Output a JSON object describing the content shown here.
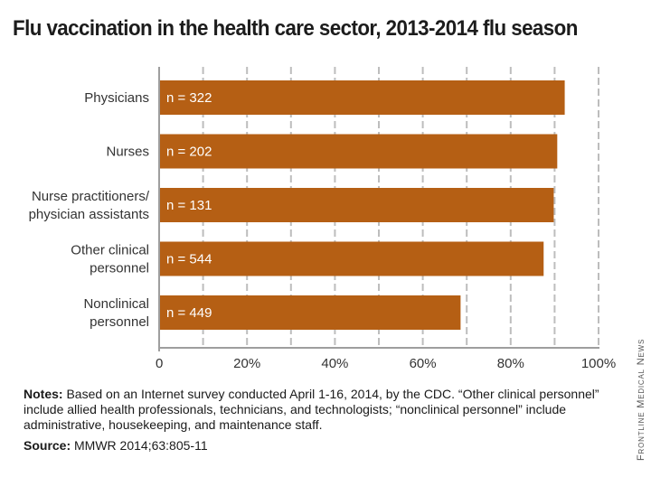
{
  "title": "Flu vaccination in the health care sector, 2013-2014 flu season",
  "notes": {
    "lead": "Notes:",
    "text": " Based on an Internet survey conducted April 1-16, 2014, by the CDC. “Other clinical personnel” include allied health professionals, technicians, and technologists; “nonclinical personnel” include administrative, housekeeping, and maintenance staff."
  },
  "source": {
    "lead": "Source:",
    "text": " MMWR 2014;63:805-11"
  },
  "credit": "Frontline Medical News",
  "colors": {
    "bar": "#b55f14",
    "grid": "#bdbdbd",
    "axis": "#9e9e9e",
    "bar_label": "#ffffff"
  },
  "chart_data": {
    "type": "bar",
    "orientation": "horizontal",
    "categories": [
      [
        "Physicians"
      ],
      [
        "Nurses"
      ],
      [
        "Nurse practitioners/",
        "physician assistants"
      ],
      [
        "Other clinical",
        "personnel"
      ],
      [
        "Nonclinical",
        "personnel"
      ]
    ],
    "values": [
      92.3,
      90.6,
      89.8,
      87.5,
      68.6
    ],
    "bar_labels": [
      "n = 322",
      "n = 202",
      "n = 131",
      "n = 544",
      "n = 449"
    ],
    "x_ticks": [
      0,
      20,
      40,
      60,
      80,
      100
    ],
    "x_tick_labels": [
      "0",
      "20%",
      "40%",
      "60%",
      "80%",
      "100%"
    ],
    "xlim": [
      0,
      100
    ],
    "grid": true,
    "grid_style": "dashed vertical lines at every 10%"
  }
}
